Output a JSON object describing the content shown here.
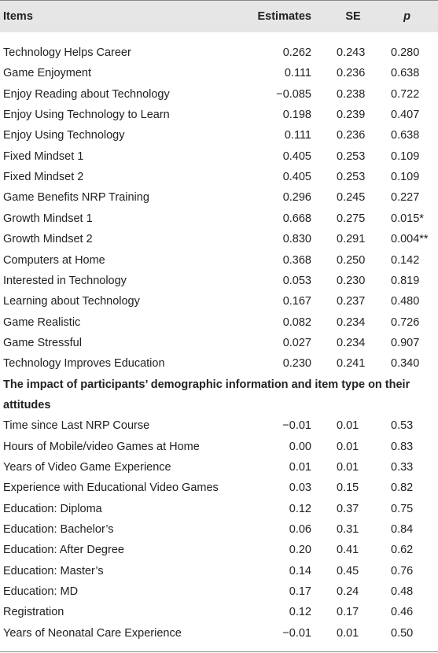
{
  "table": {
    "header": [
      "Items",
      "Estimates",
      "SE",
      "p"
    ],
    "sections": [
      {
        "rows": [
          [
            "Technology Helps Career",
            "0.262",
            "0.243",
            "0.280"
          ],
          [
            "Game Enjoyment",
            "0.111",
            "0.236",
            "0.638"
          ],
          [
            "Enjoy Reading about Technology",
            "−0.085",
            "0.238",
            "0.722"
          ],
          [
            "Enjoy Using Technology to Learn",
            "0.198",
            "0.239",
            "0.407"
          ],
          [
            "Enjoy Using Technology",
            "0.111",
            "0.236",
            "0.638"
          ],
          [
            "Fixed Mindset 1",
            "0.405",
            "0.253",
            "0.109"
          ],
          [
            "Fixed Mindset 2",
            "0.405",
            "0.253",
            "0.109"
          ],
          [
            "Game Benefits NRP Training",
            "0.296",
            "0.245",
            "0.227"
          ],
          [
            "Growth Mindset 1",
            "0.668",
            "0.275",
            "0.015*"
          ],
          [
            "Growth Mindset 2",
            "0.830",
            "0.291",
            "0.004**"
          ],
          [
            "Computers at Home",
            "0.368",
            "0.250",
            "0.142"
          ],
          [
            "Interested in Technology",
            "0.053",
            "0.230",
            "0.819"
          ],
          [
            "Learning about Technology",
            "0.167",
            "0.237",
            "0.480"
          ],
          [
            "Game Realistic",
            "0.082",
            "0.234",
            "0.726"
          ],
          [
            "Game Stressful",
            "0.027",
            "0.234",
            "0.907"
          ],
          [
            "Technology Improves Education",
            "0.230",
            "0.241",
            "0.340"
          ]
        ]
      },
      {
        "heading": "The impact of participants’ demographic information and item type on their attitudes",
        "rows": [
          [
            "Time since Last NRP Course",
            "−0.01",
            "0.01",
            "0.53"
          ],
          [
            "Hours of Mobile/video Games at Home",
            "0.00",
            "0.01",
            "0.83"
          ],
          [
            "Years of Video Game Experience",
            "0.01",
            "0.01",
            "0.33"
          ],
          [
            "Experience with Educational Video Games",
            "0.03",
            "0.15",
            "0.82"
          ],
          [
            "Education: Diploma",
            "0.12",
            "0.37",
            "0.75"
          ],
          [
            "Education: Bachelor’s",
            "0.06",
            "0.31",
            "0.84"
          ],
          [
            "Education: After Degree",
            "0.20",
            "0.41",
            "0.62"
          ],
          [
            "Education: Master’s",
            "0.14",
            "0.45",
            "0.76"
          ],
          [
            "Education: MD",
            "0.17",
            "0.24",
            "0.48"
          ],
          [
            "Registration",
            "0.12",
            "0.17",
            "0.46"
          ],
          [
            "Years of Neonatal Care Experience",
            "−0.01",
            "0.01",
            "0.50"
          ]
        ]
      }
    ]
  }
}
